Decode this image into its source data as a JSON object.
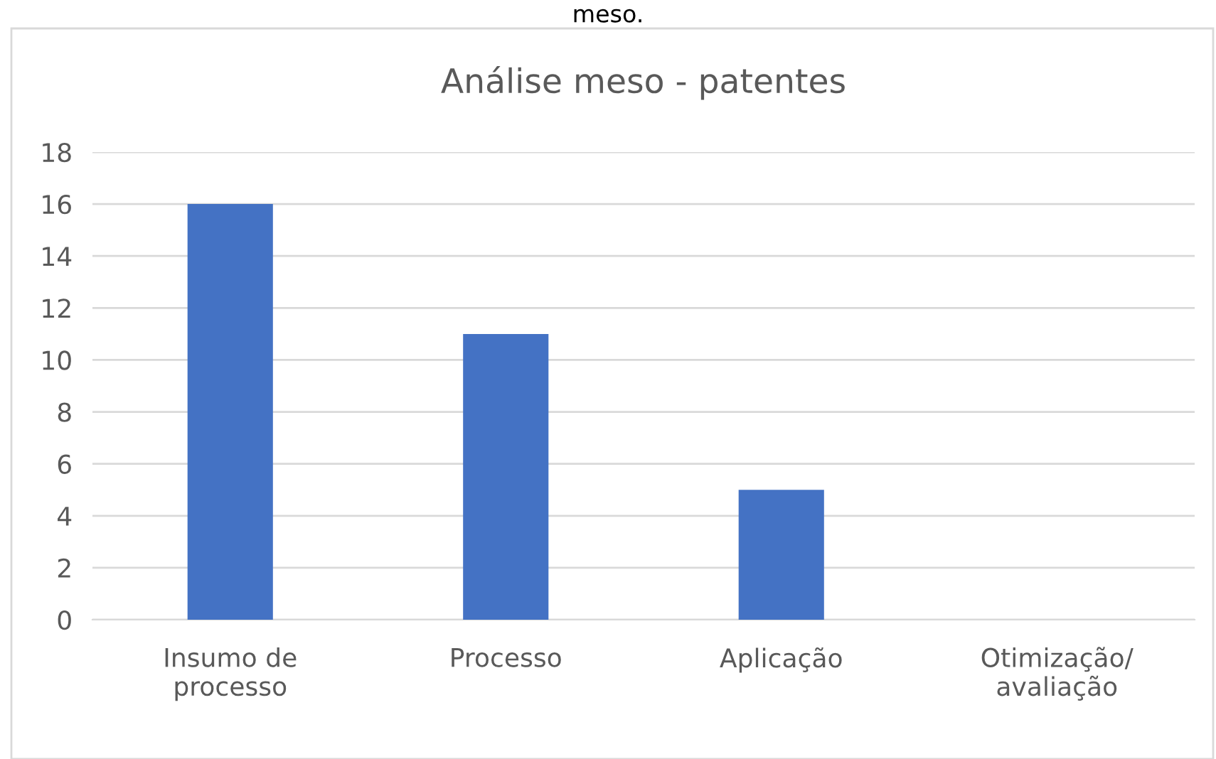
{
  "chart_data": {
    "type": "bar",
    "title": "Análise meso - patentes",
    "annotations": [
      "meso."
    ],
    "categories": [
      "Insumo de\nprocesso",
      "Processo",
      "Aplicação",
      "Otimização/\navaliação"
    ],
    "values": [
      16,
      11,
      5,
      0
    ],
    "color": "#4472c4",
    "ylim": [
      0,
      18
    ],
    "yticks": [
      0,
      2,
      4,
      6,
      8,
      10,
      12,
      14,
      16,
      18
    ],
    "grid": "y"
  }
}
